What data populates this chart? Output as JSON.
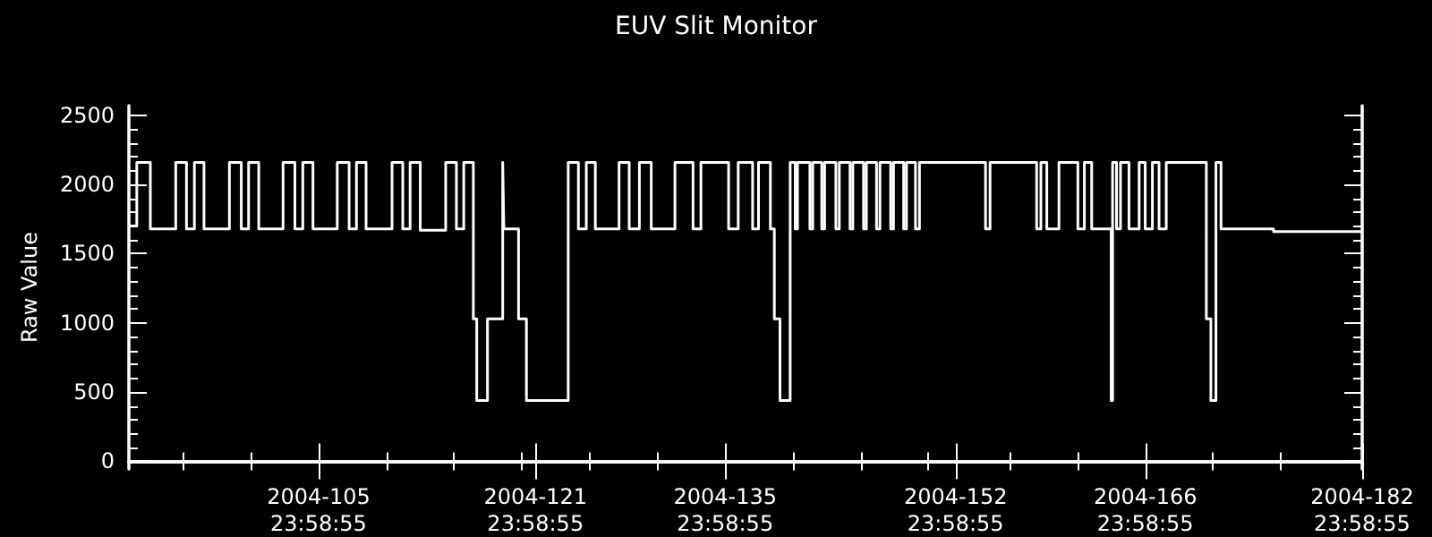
{
  "chart_data": {
    "type": "step",
    "title": "EUV Slit Monitor",
    "ylabel": "Raw Value",
    "x": [
      "2004-04-01T00:00",
      "2004-04-01T14:00",
      "2004-04-02T14:00",
      "2004-04-04T11:00",
      "2004-04-05T06:00",
      "2004-04-05T20:00",
      "2004-04-06T13:00",
      "2004-04-08T10:00",
      "2004-04-09T07:00",
      "2004-04-09T20:00",
      "2004-04-10T14:00",
      "2004-04-12T09:00",
      "2004-04-13T06:00",
      "2004-04-13T20:00",
      "2004-04-14T14:00",
      "2004-04-16T09:00",
      "2004-04-17T06:00",
      "2004-04-17T19:00",
      "2004-04-18T12:00",
      "2004-04-20T10:00",
      "2004-04-21T05:00",
      "2004-04-21T18:00",
      "2004-04-22T12:00",
      "2004-04-24T09:00",
      "2004-04-25T04:00",
      "2004-04-25T17:00",
      "2004-04-26T10:00",
      "2004-04-26T16:00",
      "2004-04-27T11:00",
      "2004-04-28T14:00",
      "2004-04-28T16:00",
      "2004-04-29T18:00",
      "2004-04-30T08:00",
      "2004-05-03T10:00",
      "2004-05-04T04:00",
      "2004-05-04T18:00",
      "2004-05-05T10:00",
      "2004-05-07T04:00",
      "2004-05-07T22:00",
      "2004-05-08T16:00",
      "2004-05-09T13:00",
      "2004-05-11T07:00",
      "2004-05-12T15:00",
      "2004-05-13T05:00",
      "2004-05-15T06:00",
      "2004-05-15T23:00",
      "2004-05-17T00:30",
      "2004-05-17T11:00",
      "2004-05-18T08:00",
      "2004-05-18T15:00",
      "2004-05-19T01:00",
      "2004-05-19T19:00",
      "2004-05-20T04:00",
      "2004-05-20T08:00",
      "2004-05-21T06:00",
      "2004-05-21T11:00",
      "2004-05-22T03:00",
      "2004-05-22T08:00",
      "2004-05-23T04:00",
      "2004-05-23T10:00",
      "2004-05-24T05:00",
      "2004-05-24T10:00",
      "2004-05-25T05:00",
      "2004-05-25T10:00",
      "2004-05-26T04:00",
      "2004-05-26T10:00",
      "2004-05-27T05:00",
      "2004-05-27T10:00",
      "2004-05-28T04:00",
      "2004-05-28T09:00",
      "2004-05-29T01:00",
      "2004-05-29T08:00",
      "2004-06-03T05:00",
      "2004-06-03T13:00",
      "2004-06-06T23:30",
      "2004-06-07T07:00",
      "2004-06-07T17:30",
      "2004-06-08T15:00",
      "2004-06-10T00:30",
      "2004-06-10T12:00",
      "2004-06-11T01:00",
      "2004-06-12T11:30",
      "2004-06-12T14:00",
      "2004-06-12T21:00",
      "2004-06-13T04:00",
      "2004-06-13T19:00",
      "2004-06-14T13:00",
      "2004-06-14T23:45",
      "2004-06-15T12:30",
      "2004-06-16T00:15",
      "2004-06-16T13:00",
      "2004-06-19T12:00",
      "2004-06-19T20:00",
      "2004-06-20T05:00",
      "2004-06-20T14:00",
      "2004-06-24T11:00",
      "2004-06-30T22:30"
    ],
    "series": [
      {
        "color": "#ffffff",
        "values": [
          1700,
          2160,
          1680,
          2160,
          1680,
          2160,
          1680,
          2160,
          1680,
          2160,
          1680,
          2160,
          1680,
          2160,
          1680,
          2160,
          1680,
          2160,
          1680,
          2160,
          1680,
          2160,
          1670,
          2160,
          1680,
          2160,
          1030,
          440,
          1030,
          2160,
          1680,
          1030,
          440,
          2160,
          1680,
          2160,
          1680,
          2160,
          1680,
          2160,
          1680,
          2160,
          1680,
          2160,
          1680,
          2160,
          1680,
          2160,
          1680,
          1030,
          440,
          2160,
          1680,
          2160,
          1680,
          2160,
          1680,
          2160,
          1680,
          2160,
          1680,
          2160,
          1680,
          2160,
          1680,
          2160,
          1680,
          2160,
          1680,
          2160,
          1680,
          2160,
          1680,
          2160,
          1680,
          2160,
          1680,
          2160,
          1680,
          2160,
          1680,
          440,
          2160,
          1680,
          2160,
          1680,
          2160,
          1680,
          2160,
          1680,
          2160,
          1030,
          440,
          2160,
          1680,
          1660,
          1660
        ]
      }
    ],
    "xlim": [
      "2004-04-01T00:00",
      "2004-06-30T23:58:55"
    ],
    "xticks": [
      {
        "value": "2004-04-05T00:00",
        "label": null
      },
      {
        "value": "2004-04-10T00:00",
        "label": null
      },
      {
        "value": "2004-04-14T23:58:55",
        "label": "2004-105\n23:58:55"
      },
      {
        "value": "2004-04-20T00:00",
        "label": null
      },
      {
        "value": "2004-04-25T00:00",
        "label": null
      },
      {
        "value": "2004-04-30T00:00",
        "label": null
      },
      {
        "value": "2004-04-30T23:58:55",
        "label": "2004-121\n23:58:55"
      },
      {
        "value": "2004-05-05T00:00",
        "label": null
      },
      {
        "value": "2004-05-10T00:00",
        "label": null
      },
      {
        "value": "2004-05-14T23:58:55",
        "label": "2004-135\n23:58:55"
      },
      {
        "value": "2004-05-20T00:00",
        "label": null
      },
      {
        "value": "2004-05-25T00:00",
        "label": null
      },
      {
        "value": "2004-05-30T00:00",
        "label": null
      },
      {
        "value": "2004-05-31T23:58:55",
        "label": "2004-152\n23:58:55"
      },
      {
        "value": "2004-06-05T00:00",
        "label": null
      },
      {
        "value": "2004-06-10T00:00",
        "label": null
      },
      {
        "value": "2004-06-14T23:58:55",
        "label": "2004-166\n23:58:55"
      },
      {
        "value": "2004-06-20T00:00",
        "label": null
      },
      {
        "value": "2004-06-25T00:00",
        "label": null
      },
      {
        "value": "2004-06-30T23:58:55",
        "label": "2004-182\n23:58:55"
      }
    ],
    "ylim": [
      -55,
      2570
    ],
    "yticks": [
      0,
      {
        "value": 100,
        "label": null
      },
      {
        "value": 200,
        "label": null
      },
      {
        "value": 300,
        "label": null
      },
      {
        "value": 400,
        "label": null
      },
      500,
      {
        "value": 600,
        "label": null
      },
      {
        "value": 700,
        "label": null
      },
      {
        "value": 800,
        "label": null
      },
      {
        "value": 900,
        "label": null
      },
      1000,
      {
        "value": 1100,
        "label": null
      },
      {
        "value": 1200,
        "label": null
      },
      {
        "value": 1300,
        "label": null
      },
      {
        "value": 1400,
        "label": null
      },
      1500,
      {
        "value": 1600,
        "label": null
      },
      {
        "value": 1700,
        "label": null
      },
      {
        "value": 1800,
        "label": null
      },
      {
        "value": 1900,
        "label": null
      },
      2000,
      {
        "value": 2100,
        "label": null
      },
      {
        "value": 2200,
        "label": null
      },
      {
        "value": 2300,
        "label": null
      },
      {
        "value": 2400,
        "label": null
      },
      2500
    ],
    "grid": false,
    "marker": "none",
    "line_style": "solid"
  }
}
